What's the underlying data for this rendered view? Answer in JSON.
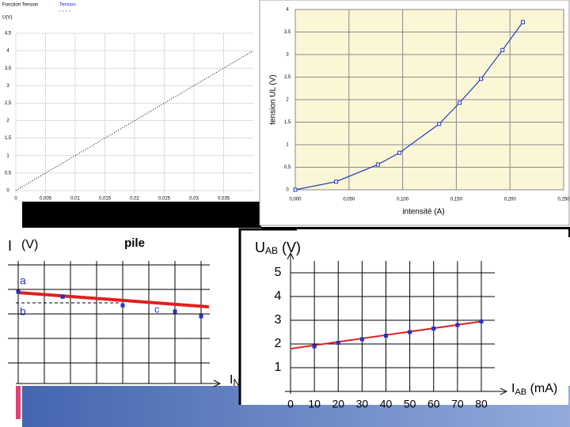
{
  "chart_data": [
    {
      "type": "line",
      "title": "Fonction Tension",
      "legend": "Tension",
      "y_label": "U(V)",
      "color": "#000000",
      "x": [
        0,
        0.005,
        0.01,
        0.015,
        0.02,
        0.025,
        0.03,
        0.035,
        0.04
      ],
      "values": [
        0,
        0.5,
        1,
        1.5,
        2,
        2.5,
        3,
        3.5,
        4
      ],
      "xlim": [
        0,
        0.04
      ],
      "ylim": [
        0,
        4.5
      ],
      "xticks": [
        0,
        {
          "value": 0.005,
          "label": "0,005"
        },
        {
          "value": 0.01,
          "label": "0,01"
        },
        {
          "value": 0.015,
          "label": "0,015"
        },
        {
          "value": 0.02,
          "label": "0,02"
        },
        {
          "value": 0.025,
          "label": "0,025"
        },
        {
          "value": 0.03,
          "label": "0,03"
        },
        {
          "value": 0.035,
          "label": "0,035"
        }
      ],
      "yticks": [
        0,
        {
          "value": 0.5,
          "label": "0,5"
        },
        1,
        {
          "value": 1.5,
          "label": "1,5"
        },
        2,
        {
          "value": 2.5,
          "label": "2,5"
        },
        3,
        {
          "value": 3.5,
          "label": "3,5"
        },
        4,
        {
          "value": 4.5,
          "label": "4,5"
        }
      ],
      "grid": true
    },
    {
      "type": "line",
      "markers": true,
      "y_label": "tension UL (V)",
      "x_label": "intensité (A)",
      "color": "#1f3fbf",
      "x": [
        0,
        0.038,
        0.077,
        0.097,
        0.134,
        0.153,
        0.173,
        0.193,
        0.212
      ],
      "values": [
        0,
        0.18,
        0.56,
        0.82,
        1.46,
        1.93,
        2.46,
        3.1,
        3.72
      ],
      "xlim": [
        0,
        0.25
      ],
      "ylim": [
        0,
        4
      ],
      "xticks": [
        {
          "value": 0,
          "label": "0,000"
        },
        {
          "value": 0.05,
          "label": "0,050"
        },
        {
          "value": 0.1,
          "label": "0,100"
        },
        {
          "value": 0.15,
          "label": "0,150"
        },
        {
          "value": 0.2,
          "label": "0,200"
        },
        {
          "value": 0.25,
          "label": "0,250"
        }
      ],
      "yticks": [
        0,
        {
          "value": 0.5,
          "label": "0,5"
        },
        1,
        {
          "value": 1.5,
          "label": "1,5"
        },
        2,
        {
          "value": 2.5,
          "label": "2,5"
        },
        3,
        {
          "value": 3.5,
          "label": "3,5"
        },
        4
      ],
      "grid": true
    },
    {
      "type": "scatter",
      "title": "pile",
      "y_label": "(V)",
      "x_label": {
        "main": "I",
        "sub": "N"
      },
      "labels": [
        "a",
        "b",
        "c"
      ],
      "color": "#2233cc",
      "x": [
        0,
        1.7,
        4,
        6,
        7
      ],
      "values": [
        3.9,
        3.7,
        3.35,
        3.1,
        2.9
      ],
      "fit": {
        "x": [
          0,
          7.3
        ],
        "values": [
          3.87,
          3.29
        ],
        "color": "#e02020"
      },
      "dashed_level": 3.45,
      "xlim": [
        0,
        8
      ],
      "ylim": [
        0,
        5
      ],
      "grid_x": [
        0,
        1,
        2,
        3,
        4,
        5,
        6,
        7
      ],
      "grid_y": [
        1,
        2,
        3,
        4,
        5
      ]
    },
    {
      "type": "scatter",
      "y_label": {
        "main": "U",
        "sub": "AB",
        "unit": " (V)"
      },
      "x_label": {
        "main": "I",
        "sub": "AB",
        "unit": " (mA)"
      },
      "color": "#2233cc",
      "x": [
        10,
        20,
        30,
        40,
        50,
        60,
        70,
        80
      ],
      "values": [
        1.9,
        2.05,
        2.2,
        2.35,
        2.5,
        2.65,
        2.8,
        2.95
      ],
      "fit": {
        "x": [
          0,
          80
        ],
        "values": [
          1.8,
          2.95
        ],
        "color": "#e02020"
      },
      "xlim": [
        0,
        80
      ],
      "ylim": [
        0,
        5
      ],
      "xticks": [
        0,
        10,
        20,
        30,
        40,
        50,
        60,
        70,
        80
      ],
      "yticks": [
        1,
        2,
        3,
        4,
        5
      ],
      "grid": true
    }
  ]
}
